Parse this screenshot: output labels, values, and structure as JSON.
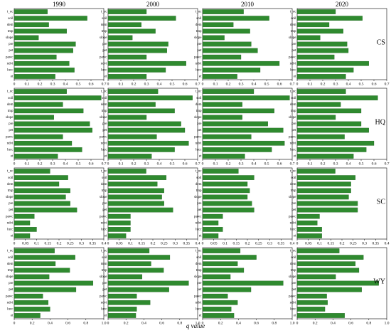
{
  "xlabel": "q value",
  "chart_data": [
    {
      "type": "bar",
      "orientation": "horizontal",
      "title": "1990",
      "categories": [
        "t_oc",
        "soil",
        "dem",
        "tmp",
        "slope",
        "pre",
        "pet",
        "pawc",
        "ndvi",
        "lucc",
        "et"
      ],
      "values": [
        0.26,
        0.57,
        0.27,
        0.41,
        0.19,
        0.48,
        0.46,
        0.33,
        0.43,
        0.47,
        0.32
      ],
      "xlim": [
        0,
        0.7
      ],
      "xticks": [
        0,
        0.1,
        0.2,
        0.3,
        0.4,
        0.5,
        0.6,
        0.7
      ],
      "color": "#2f8a2f"
    },
    {
      "type": "bar",
      "orientation": "horizontal",
      "title": "2000",
      "categories": [
        "t_oc",
        "soil",
        "dem",
        "tmp",
        "slope",
        "pre",
        "pet",
        "pawc",
        "ndvi",
        "lucc",
        "et"
      ],
      "values": [
        0.3,
        0.53,
        0.26,
        0.37,
        0.19,
        0.47,
        0.46,
        0.3,
        0.61,
        0.45,
        0.3
      ],
      "xlim": [
        0,
        0.7
      ],
      "xticks": [
        0,
        0.1,
        0.2,
        0.3,
        0.4,
        0.5,
        0.6,
        0.7
      ],
      "color": "#2f8a2f"
    },
    {
      "type": "bar",
      "orientation": "horizontal",
      "title": "2010",
      "categories": [
        "t_oc",
        "soil",
        "dem",
        "tmp",
        "slope",
        "pre",
        "pet",
        "pawc",
        "ndvi",
        "lucc",
        "et"
      ],
      "values": [
        0.32,
        0.52,
        0.24,
        0.37,
        0.17,
        0.38,
        0.43,
        0.3,
        0.6,
        0.45,
        0.27
      ],
      "xlim": [
        0,
        0.7
      ],
      "xticks": [
        0,
        0.1,
        0.2,
        0.3,
        0.4,
        0.5,
        0.6,
        0.7
      ],
      "color": "#2f8a2f"
    },
    {
      "type": "bar",
      "orientation": "horizontal",
      "title": "2020",
      "label": "CS",
      "categories": [
        "t_oc",
        "soil",
        "dem",
        "tmp",
        "slope",
        "pre",
        "pet",
        "pawc",
        "ndvi",
        "lucc",
        "et"
      ],
      "values": [
        0.3,
        0.51,
        0.25,
        0.36,
        0.18,
        0.39,
        0.4,
        0.29,
        0.56,
        0.44,
        0.38
      ],
      "xlim": [
        0,
        0.7
      ],
      "xticks": [
        0,
        0.1,
        0.2,
        0.3,
        0.4,
        0.5,
        0.6,
        0.7
      ],
      "color": "#2f8a2f"
    },
    {
      "type": "bar",
      "orientation": "horizontal",
      "categories": [
        "t_oc",
        "soil",
        "dem",
        "tmp",
        "slope",
        "pre",
        "pet",
        "pawc",
        "ndvi",
        "lucc",
        "et"
      ],
      "values": [
        0.41,
        0.68,
        0.38,
        0.54,
        0.31,
        0.59,
        0.61,
        0.38,
        0.45,
        0.53,
        0.34
      ],
      "xlim": [
        0,
        0.7
      ],
      "xticks": [
        0,
        0.1,
        0.2,
        0.3,
        0.4,
        0.5,
        0.6,
        0.7
      ],
      "color": "#2f8a2f"
    },
    {
      "type": "bar",
      "orientation": "horizontal",
      "categories": [
        "t_oc",
        "soil",
        "dem",
        "tmp",
        "slope",
        "pre",
        "pet",
        "pawc",
        "ndvi",
        "lucc",
        "et"
      ],
      "values": [
        0.39,
        0.66,
        0.37,
        0.52,
        0.3,
        0.57,
        0.6,
        0.38,
        0.63,
        0.52,
        0.34
      ],
      "xlim": [
        0,
        0.7
      ],
      "xticks": [
        0,
        0.1,
        0.2,
        0.3,
        0.4,
        0.5,
        0.6,
        0.7
      ],
      "color": "#2f8a2f"
    },
    {
      "type": "bar",
      "orientation": "horizontal",
      "categories": [
        "t_oc",
        "soil",
        "dem",
        "tmp",
        "slope",
        "pre",
        "pet",
        "pawc",
        "ndvi",
        "lucc",
        "et"
      ],
      "values": [
        0.4,
        0.68,
        0.31,
        0.56,
        0.31,
        0.51,
        0.63,
        0.38,
        0.64,
        0.54,
        0.33
      ],
      "xlim": [
        0,
        0.7
      ],
      "xticks": [
        0,
        0.1,
        0.2,
        0.3,
        0.4,
        0.5,
        0.6,
        0.7
      ],
      "color": "#2f8a2f"
    },
    {
      "type": "bar",
      "orientation": "horizontal",
      "label": "HQ",
      "categories": [
        "t_oc",
        "soil",
        "dem",
        "tmp",
        "slope",
        "pre",
        "pet",
        "pawc",
        "ndvi",
        "lucc",
        "et"
      ],
      "values": [
        0.38,
        0.63,
        0.34,
        0.5,
        0.3,
        0.5,
        0.56,
        0.37,
        0.6,
        0.54,
        0.44
      ],
      "xlim": [
        0,
        0.7
      ],
      "xticks": [
        0,
        0.1,
        0.2,
        0.3,
        0.4,
        0.5,
        0.6,
        0.7
      ],
      "color": "#2f8a2f"
    },
    {
      "type": "bar",
      "orientation": "horizontal",
      "categories": [
        "t_oc",
        "soil",
        "dem",
        "tmp",
        "slope",
        "pre",
        "pet",
        "pawc",
        "ndvi",
        "lucc",
        "et"
      ],
      "values": [
        0.16,
        0.24,
        0.2,
        0.25,
        0.23,
        0.25,
        0.28,
        0.09,
        0.07,
        0.1,
        0.07
      ],
      "xlim": [
        0,
        0.4
      ],
      "xticks": [
        0,
        0.05,
        0.1,
        0.15,
        0.2,
        0.25,
        0.3,
        0.35,
        0.4
      ],
      "color": "#2f8a2f"
    },
    {
      "type": "bar",
      "orientation": "horizontal",
      "categories": [
        "t_oc",
        "soil",
        "dem",
        "tmp",
        "slope",
        "pre",
        "pet",
        "pawc",
        "ndvi",
        "lucc",
        "et"
      ],
      "values": [
        0.17,
        0.26,
        0.22,
        0.25,
        0.24,
        0.25,
        0.29,
        0.1,
        0.1,
        0.1,
        0.08
      ],
      "xlim": [
        0,
        0.4
      ],
      "xticks": [
        0,
        0.05,
        0.1,
        0.15,
        0.2,
        0.25,
        0.3,
        0.35,
        0.4
      ],
      "color": "#2f8a2f"
    },
    {
      "type": "bar",
      "orientation": "horizontal",
      "categories": [
        "t_oc",
        "soil",
        "dem",
        "tmp",
        "slope",
        "pre",
        "pet",
        "pawc",
        "ndvi",
        "lucc",
        "et"
      ],
      "values": [
        0.16,
        0.23,
        0.2,
        0.21,
        0.2,
        0.22,
        0.23,
        0.09,
        0.07,
        0.09,
        0.07
      ],
      "xlim": [
        0,
        0.4
      ],
      "xticks": [
        0,
        0.05,
        0.1,
        0.15,
        0.2,
        0.25,
        0.3,
        0.35,
        0.4
      ],
      "color": "#2f8a2f"
    },
    {
      "type": "bar",
      "orientation": "horizontal",
      "label": "SC",
      "categories": [
        "t_oc",
        "soil",
        "dem",
        "tmp",
        "slope",
        "pre",
        "pet",
        "pawc",
        "ndvi",
        "lucc",
        "et"
      ],
      "values": [
        0.17,
        0.26,
        0.24,
        0.24,
        0.23,
        0.27,
        0.27,
        0.1,
        0.09,
        0.11,
        0.11
      ],
      "xlim": [
        0,
        0.4
      ],
      "xticks": [
        0,
        0.05,
        0.1,
        0.15,
        0.2,
        0.25,
        0.3,
        0.35,
        0.4
      ],
      "color": "#2f8a2f"
    },
    {
      "type": "bar",
      "orientation": "horizontal",
      "categories": [
        "t_oc",
        "soil",
        "dem",
        "tmp",
        "slope",
        "pre",
        "pet",
        "pawc",
        "ndvi",
        "lucc",
        "et"
      ],
      "values": [
        0.45,
        0.68,
        0.46,
        0.62,
        0.39,
        0.88,
        0.69,
        0.32,
        0.38,
        0.4,
        0.29
      ],
      "xlim": [
        0,
        1.0
      ],
      "xticks": [
        0,
        0.2,
        0.4,
        0.6,
        0.8,
        {
          "value": 1.0,
          "label": "1.0"
        }
      ],
      "color": "#2f8a2f"
    },
    {
      "type": "bar",
      "orientation": "horizontal",
      "categories": [
        "t_oc",
        "soil",
        "dem",
        "tmp",
        "slope",
        "pre",
        "pet",
        "pawc",
        "ndvi",
        "lucc",
        "et"
      ],
      "values": [
        0.46,
        0.69,
        0.48,
        0.62,
        0.38,
        0.9,
        0.68,
        0.32,
        0.47,
        0.32,
        0.31
      ],
      "xlim": [
        0,
        1.0
      ],
      "xticks": [
        0,
        0.2,
        0.4,
        0.6,
        0.8,
        {
          "value": 1.0,
          "label": "1.0"
        }
      ],
      "color": "#2f8a2f"
    },
    {
      "type": "bar",
      "orientation": "horizontal",
      "categories": [
        "t_oc",
        "soil",
        "dem",
        "tmp",
        "slope",
        "pre",
        "pet",
        "pawc",
        "ndvi",
        "lucc",
        "et"
      ],
      "values": [
        0.42,
        0.6,
        0.39,
        0.46,
        0.31,
        0.9,
        0.54,
        0.28,
        0.39,
        0.32,
        0.35
      ],
      "xlim": [
        0,
        1.0
      ],
      "xticks": [
        0,
        0.2,
        0.4,
        0.6,
        0.8,
        {
          "value": 1.0,
          "label": "1.0"
        }
      ],
      "color": "#2f8a2f"
    },
    {
      "type": "bar",
      "orientation": "horizontal",
      "label": "WY",
      "categories": [
        "t_oc",
        "soil",
        "dem",
        "tmp",
        "slope",
        "pre",
        "pet",
        "pawc",
        "ndvi",
        "lucc",
        "et"
      ],
      "values": [
        0.47,
        0.74,
        0.65,
        0.69,
        0.43,
        0.91,
        0.72,
        0.33,
        0.34,
        0.31,
        0.53
      ],
      "xlim": [
        0,
        1.0
      ],
      "xticks": [
        0,
        0.2,
        0.4,
        0.6,
        0.8,
        {
          "value": 1.0,
          "label": "1.0"
        }
      ],
      "color": "#2f8a2f"
    }
  ]
}
